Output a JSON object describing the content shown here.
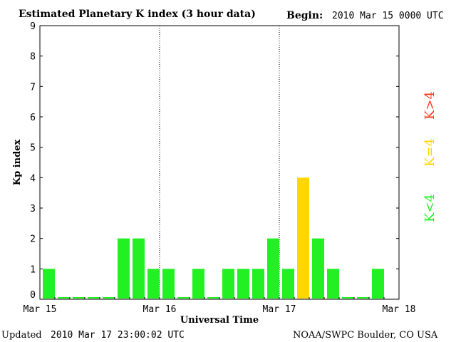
{
  "header": {
    "title": "Estimated Planetary K index (3 hour data)",
    "begin_label": "Begin:",
    "begin_value": "2010 Mar 15 0000 UTC"
  },
  "footer": {
    "updated_label": "Updated",
    "updated_value": "2010 Mar 17 23:00:02 UTC",
    "source": "NOAA/SWPC Boulder, CO USA"
  },
  "legend": {
    "low": "K<4",
    "equal": "K=4",
    "high": "K>4"
  },
  "colors": {
    "low": "#22f022",
    "equal": "#ffd700",
    "high": "#ff3a1a",
    "axis": "#000000",
    "background": "#ffffff"
  },
  "chart_data": {
    "type": "bar",
    "title": "Estimated Planetary K index (3 hour data)",
    "xlabel": "Universal Time",
    "ylabel": "Kp index",
    "ylim": [
      0,
      9
    ],
    "yticks": [
      "0",
      "1",
      "2",
      "3",
      "4",
      "5",
      "6",
      "7",
      "8",
      "9"
    ],
    "xticks": [
      "Mar 15",
      "Mar 16",
      "Mar 17",
      "Mar 18"
    ],
    "day_dividers": [
      "Mar 16",
      "Mar 17"
    ],
    "slots_total": 24,
    "values": [
      1,
      0,
      0,
      0,
      0,
      2,
      2,
      1,
      1,
      0,
      1,
      0,
      1,
      1,
      1,
      2,
      1,
      4,
      2,
      1,
      0,
      0,
      1
    ]
  }
}
